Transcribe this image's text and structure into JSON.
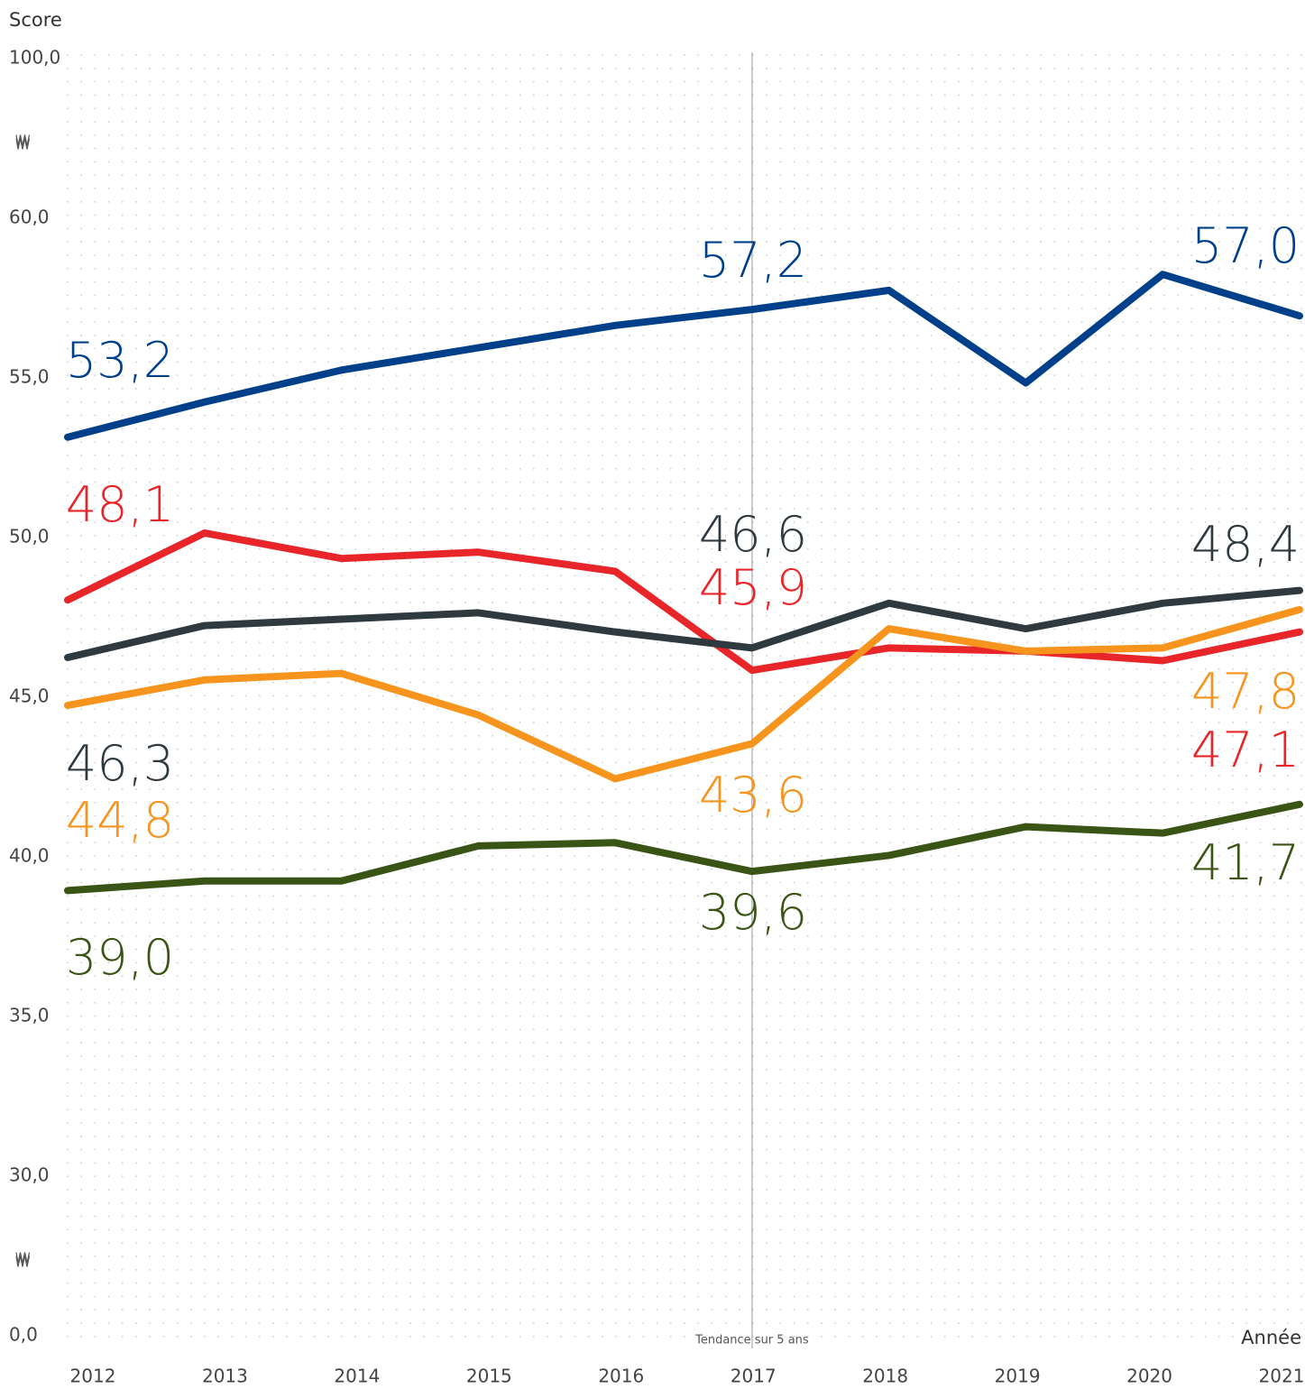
{
  "chart_data": {
    "type": "line",
    "y_label": "Score",
    "x_label": "Année",
    "annotation": "Tendance sur 5 ans",
    "categories": [
      "2012",
      "2013",
      "2014",
      "2015",
      "2016",
      "2017",
      "2018",
      "2019",
      "2020",
      "2021"
    ],
    "annotation_category": "2017",
    "ylim": [
      0,
      100
    ],
    "yticks": [
      {
        "value": 0,
        "label": "0,0"
      },
      {
        "value": 30,
        "label": "30,0"
      },
      {
        "value": 35,
        "label": "35,0"
      },
      {
        "value": 40,
        "label": "40,0"
      },
      {
        "value": 45,
        "label": "45,0"
      },
      {
        "value": 50,
        "label": "50,0"
      },
      {
        "value": 55,
        "label": "55,0"
      },
      {
        "value": 60,
        "label": "60,0"
      },
      {
        "value": 100,
        "label": "100,0"
      }
    ],
    "axis_breaks": [
      [
        0,
        30
      ],
      [
        60,
        100
      ]
    ],
    "grid": true,
    "series": [
      {
        "color": "#003f8a",
        "values": [
          53.2,
          54.3,
          55.3,
          56.0,
          56.7,
          57.2,
          57.8,
          54.9,
          58.3,
          57.0
        ],
        "value_labels": [
          "53,2",
          null,
          null,
          null,
          null,
          "57,2",
          null,
          null,
          null,
          "57,0"
        ]
      },
      {
        "color": "#e8262a",
        "values": [
          48.1,
          50.2,
          49.4,
          49.6,
          49.0,
          45.9,
          46.6,
          46.5,
          46.2,
          47.1
        ],
        "value_labels": [
          "48,1",
          null,
          null,
          null,
          null,
          "45,9",
          null,
          null,
          null,
          "47,1"
        ]
      },
      {
        "color": "#2f3a40",
        "values": [
          46.3,
          47.3,
          47.5,
          47.7,
          47.1,
          46.6,
          48.0,
          47.2,
          48.0,
          48.4
        ],
        "value_labels": [
          "46,3",
          null,
          null,
          null,
          null,
          "46,6",
          null,
          null,
          null,
          "48,4"
        ]
      },
      {
        "color": "#f7941d",
        "values": [
          44.8,
          45.6,
          45.8,
          44.5,
          42.5,
          43.6,
          47.2,
          46.5,
          46.6,
          47.8
        ],
        "value_labels": [
          "44,8",
          null,
          null,
          null,
          null,
          "43,6",
          null,
          null,
          null,
          "47,8"
        ]
      },
      {
        "color": "#3a5416",
        "values": [
          39.0,
          39.3,
          39.3,
          40.4,
          40.5,
          39.6,
          40.1,
          41.0,
          40.8,
          41.7
        ],
        "value_labels": [
          "39,0",
          null,
          null,
          null,
          null,
          "39,6",
          null,
          null,
          null,
          "41,7"
        ]
      }
    ]
  }
}
